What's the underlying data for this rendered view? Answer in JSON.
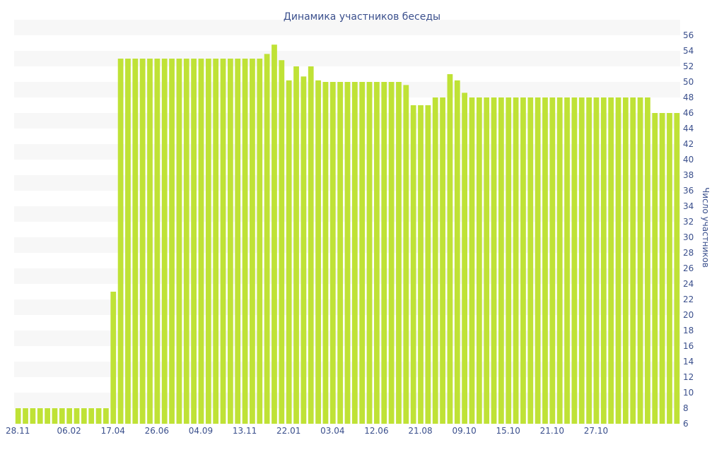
{
  "chart_data": {
    "type": "bar",
    "title": "Динамика участников беседы",
    "xlabel": "",
    "ylabel": "Число участников",
    "ylim": [
      6,
      56
    ],
    "ytick_step": 2,
    "y_axis_position": "right",
    "alternating_bands": true,
    "bar_color": "#bfe236",
    "text_color": "#3a4f8c",
    "x_tick_labels": [
      {
        "index": 0,
        "label": "28.11"
      },
      {
        "index": 7,
        "label": "06.02"
      },
      {
        "index": 13,
        "label": "17.04"
      },
      {
        "index": 19,
        "label": "26.06"
      },
      {
        "index": 25,
        "label": "04.09"
      },
      {
        "index": 31,
        "label": "13.11"
      },
      {
        "index": 37,
        "label": "22.01"
      },
      {
        "index": 43,
        "label": "03.04"
      },
      {
        "index": 49,
        "label": "12.06"
      },
      {
        "index": 55,
        "label": "21.08"
      },
      {
        "index": 61,
        "label": "09.10"
      },
      {
        "index": 67,
        "label": "15.10"
      },
      {
        "index": 73,
        "label": "21.10"
      },
      {
        "index": 79,
        "label": "27.10"
      }
    ],
    "values": [
      8,
      8,
      8,
      8,
      8,
      8,
      8,
      8,
      8,
      8,
      8,
      8,
      8,
      23,
      53,
      53,
      53,
      53,
      53,
      53,
      53,
      53,
      53,
      53,
      53,
      53,
      53,
      53,
      53,
      53,
      53,
      53,
      53,
      53,
      53.6,
      54.8,
      52.8,
      50.2,
      52,
      50.7,
      52,
      50.2,
      50,
      50,
      50,
      50,
      50,
      50,
      50,
      50,
      50,
      50,
      50,
      49.6,
      47,
      47,
      47,
      48,
      48,
      51,
      50.2,
      48.6,
      48,
      48,
      48,
      48,
      48,
      48,
      48,
      48,
      48,
      48,
      48,
      48,
      48,
      48,
      48,
      48,
      48,
      48,
      48,
      48,
      48,
      48,
      48,
      48,
      48,
      46,
      46,
      46,
      46
    ]
  }
}
